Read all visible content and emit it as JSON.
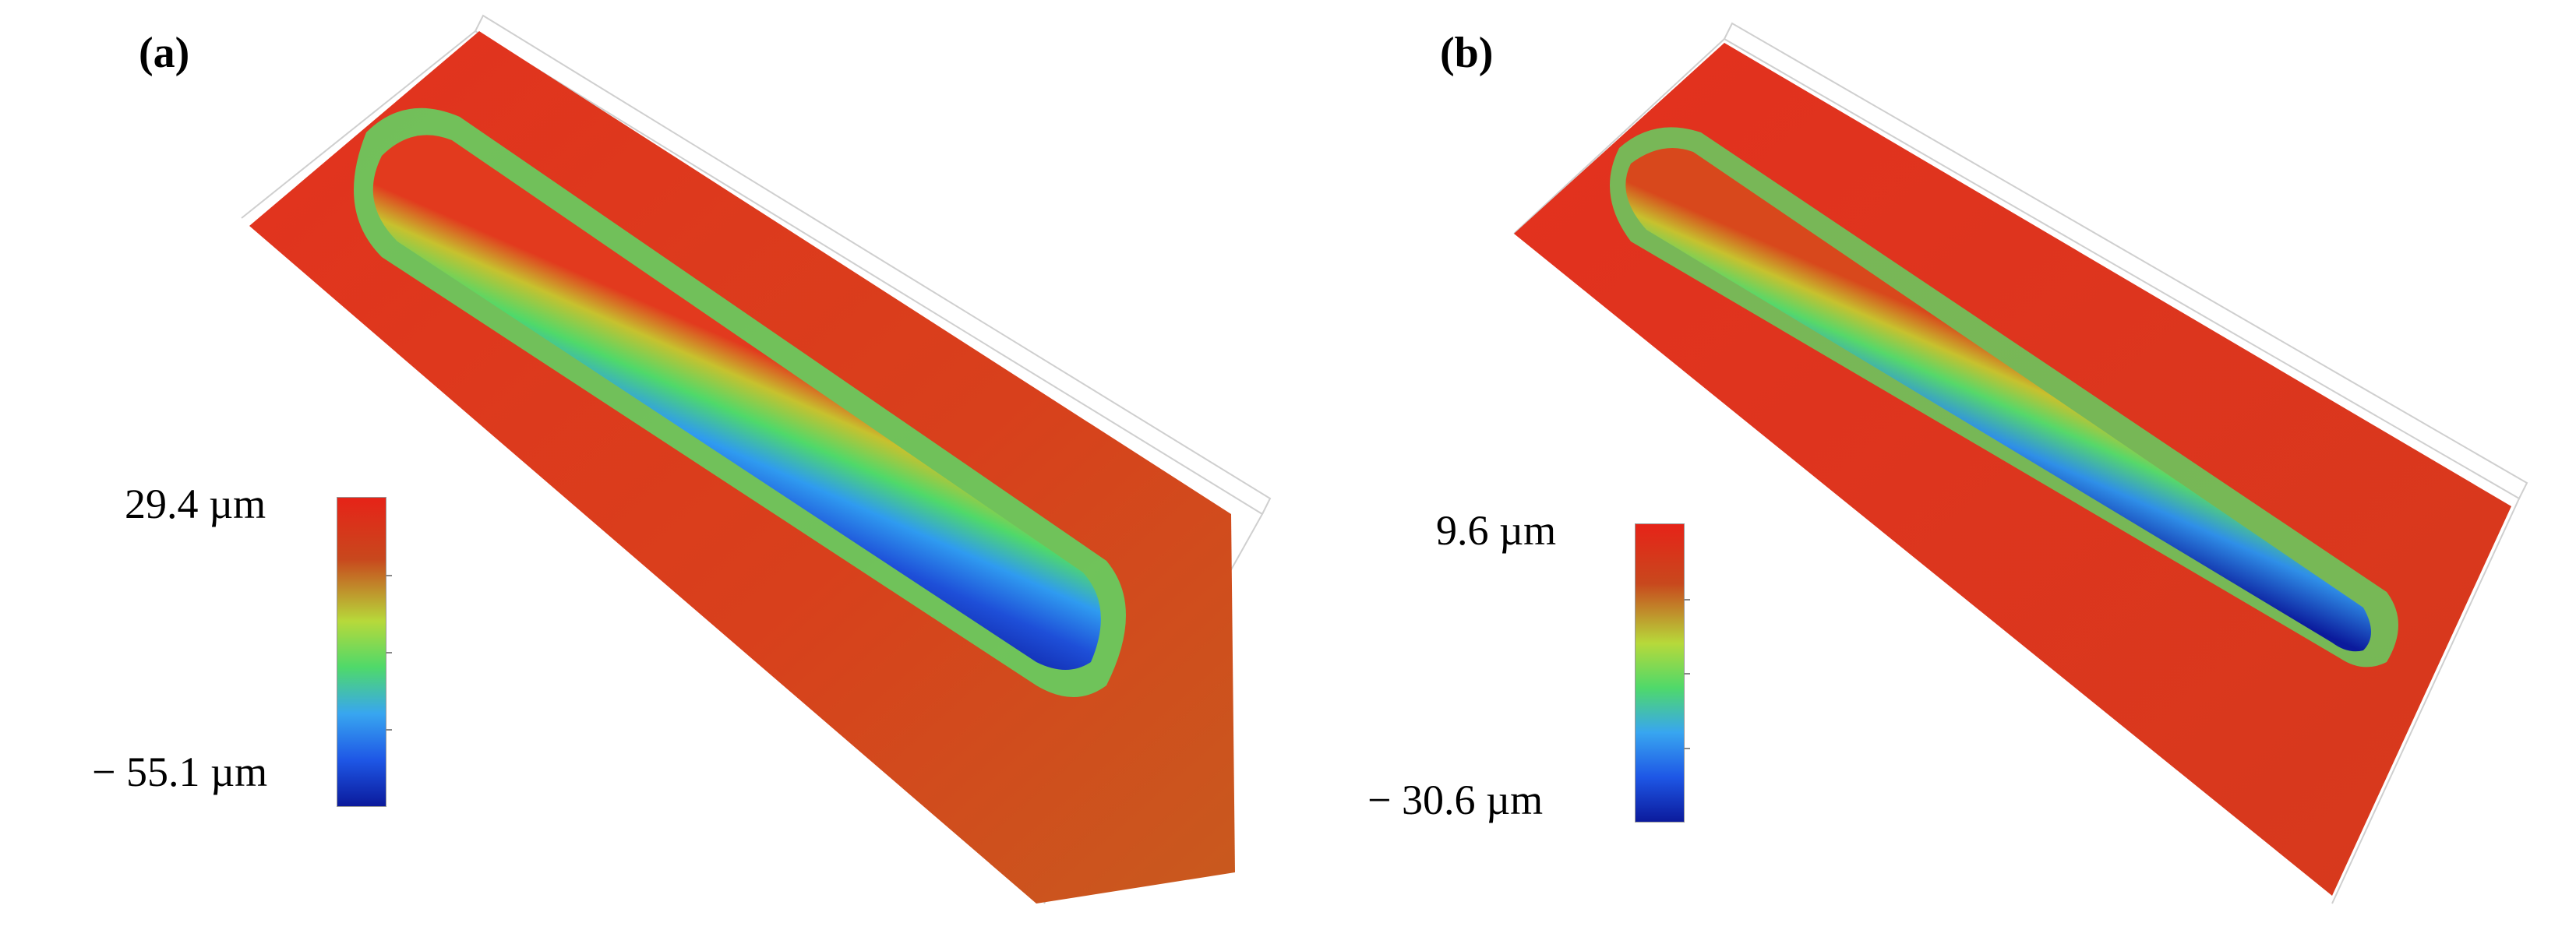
{
  "panels": [
    {
      "label": "(a)",
      "scale": {
        "max_label": "29.4 µm",
        "min_label": "− 55.1 µm",
        "max_um": 29.4,
        "min_um": -55.1
      }
    },
    {
      "label": "(b)",
      "scale": {
        "max_label": "9.6 µm",
        "min_label": "− 30.6 µm",
        "max_um": 9.6,
        "min_um": -30.6
      }
    }
  ],
  "colormap": [
    "#0b1a9c",
    "#1e57e6",
    "#38a6f0",
    "#4fd96a",
    "#b7d93a",
    "#d98a24",
    "#e62318"
  ]
}
